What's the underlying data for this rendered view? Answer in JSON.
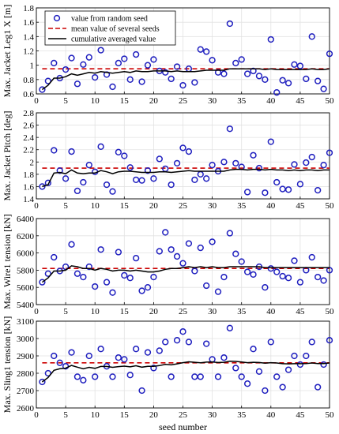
{
  "figure": {
    "xlabel": "seed number",
    "xlim": [
      0,
      50
    ],
    "xticks": [
      0,
      5,
      10,
      15,
      20,
      25,
      30,
      35,
      40,
      45,
      50
    ]
  },
  "legend": {
    "placement": "top-left of first panel",
    "entries": [
      {
        "label": "value from random seed",
        "style": "circle",
        "color": "#1f1fbf"
      },
      {
        "label": "mean value of several seeds",
        "style": "dashed",
        "color": "#cc0000"
      },
      {
        "label": "cumulative averaged value",
        "style": "solid",
        "color": "#000000"
      }
    ]
  },
  "colors": {
    "points": "#1f1fbf",
    "mean": "#cc0000",
    "cumulative": "#000000"
  },
  "chart_data": [
    {
      "type": "scatter",
      "ylabel": "Max. Jacket Leg1 X [m]",
      "ylim": [
        0.6,
        1.8
      ],
      "yticks": [
        "0.6",
        "0.8",
        "1",
        "1.2",
        "1.4",
        "1.6",
        "1.8"
      ],
      "grid": true,
      "mean": 0.95,
      "x": [
        1,
        2,
        3,
        4,
        5,
        6,
        7,
        8,
        9,
        10,
        11,
        12,
        13,
        14,
        15,
        16,
        17,
        18,
        19,
        20,
        21,
        22,
        23,
        24,
        25,
        26,
        27,
        28,
        29,
        30,
        31,
        32,
        33,
        34,
        35,
        36,
        37,
        38,
        39,
        40,
        41,
        42,
        43,
        44,
        45,
        46,
        47,
        48,
        49,
        50
      ],
      "series": [
        {
          "name": "value from random seed",
          "values": [
            0.66,
            0.78,
            1.03,
            0.82,
            0.94,
            1.1,
            0.74,
            1.01,
            1.11,
            0.83,
            1.21,
            0.87,
            0.7,
            1.03,
            1.09,
            0.8,
            1.15,
            0.77,
            1.0,
            1.08,
            0.92,
            0.9,
            0.81,
            0.98,
            0.72,
            0.95,
            0.76,
            1.22,
            1.19,
            1.07,
            0.9,
            0.88,
            1.58,
            1.03,
            1.08,
            0.88,
            0.92,
            0.85,
            0.8,
            1.36,
            0.62,
            0.79,
            0.75,
            1.01,
            0.99,
            0.81,
            1.4,
            0.78,
            0.67,
            1.16
          ]
        },
        {
          "name": "cumulative averaged value",
          "values": [
            0.66,
            0.72,
            0.82,
            0.82,
            0.84,
            0.88,
            0.86,
            0.88,
            0.9,
            0.89,
            0.91,
            0.9,
            0.89,
            0.9,
            0.91,
            0.9,
            0.92,
            0.91,
            0.91,
            0.92,
            0.92,
            0.92,
            0.91,
            0.92,
            0.91,
            0.91,
            0.91,
            0.92,
            0.93,
            0.93,
            0.93,
            0.93,
            0.95,
            0.95,
            0.95,
            0.95,
            0.95,
            0.95,
            0.94,
            0.95,
            0.94,
            0.94,
            0.94,
            0.94,
            0.94,
            0.94,
            0.95,
            0.94,
            0.94,
            0.95
          ]
        }
      ]
    },
    {
      "type": "scatter",
      "ylabel": "Max. Jacket Pitch [deg]",
      "ylim": [
        1.4,
        2.8
      ],
      "yticks": [
        "1.4",
        "1.6",
        "1.8",
        "2",
        "2.2",
        "2.4",
        "2.6",
        "2.8"
      ],
      "grid": true,
      "mean": 1.9,
      "x": [
        1,
        2,
        3,
        4,
        5,
        6,
        7,
        8,
        9,
        10,
        11,
        12,
        13,
        14,
        15,
        16,
        17,
        18,
        19,
        20,
        21,
        22,
        23,
        24,
        25,
        26,
        27,
        28,
        29,
        30,
        31,
        32,
        33,
        34,
        35,
        36,
        37,
        38,
        39,
        40,
        41,
        42,
        43,
        44,
        45,
        46,
        47,
        48,
        49,
        50
      ],
      "series": [
        {
          "name": "value from random seed",
          "values": [
            1.6,
            1.66,
            2.19,
            1.86,
            1.73,
            2.17,
            1.53,
            1.67,
            1.95,
            1.84,
            2.25,
            1.63,
            1.52,
            2.16,
            2.1,
            1.91,
            1.71,
            1.7,
            1.86,
            1.73,
            2.05,
            1.89,
            1.63,
            1.98,
            2.23,
            2.17,
            1.71,
            1.8,
            1.73,
            1.95,
            1.85,
            2.0,
            2.54,
            1.98,
            1.92,
            1.51,
            2.11,
            1.9,
            1.5,
            2.33,
            1.67,
            1.56,
            1.55,
            1.96,
            1.64,
            1.99,
            2.08,
            1.54,
            1.95,
            2.15
          ]
        },
        {
          "name": "cumulative averaged value",
          "values": [
            1.6,
            1.63,
            1.82,
            1.83,
            1.81,
            1.87,
            1.82,
            1.81,
            1.82,
            1.82,
            1.86,
            1.84,
            1.81,
            1.84,
            1.85,
            1.85,
            1.84,
            1.83,
            1.83,
            1.83,
            1.84,
            1.84,
            1.83,
            1.84,
            1.85,
            1.86,
            1.85,
            1.85,
            1.85,
            1.85,
            1.85,
            1.85,
            1.87,
            1.88,
            1.88,
            1.87,
            1.88,
            1.88,
            1.87,
            1.88,
            1.87,
            1.87,
            1.86,
            1.87,
            1.86,
            1.87,
            1.87,
            1.86,
            1.87,
            1.87
          ]
        }
      ]
    },
    {
      "type": "scatter",
      "ylabel": "Max. Wire1 tension [kN]",
      "ylim": [
        5400,
        6400
      ],
      "yticks": [
        "5400",
        "5600",
        "5800",
        "6000",
        "6200",
        "6400"
      ],
      "grid": true,
      "mean": 5820,
      "x": [
        1,
        2,
        3,
        4,
        5,
        6,
        7,
        8,
        9,
        10,
        11,
        12,
        13,
        14,
        15,
        16,
        17,
        18,
        19,
        20,
        21,
        22,
        23,
        24,
        25,
        26,
        27,
        28,
        29,
        30,
        31,
        32,
        33,
        34,
        35,
        36,
        37,
        38,
        39,
        40,
        41,
        42,
        43,
        44,
        45,
        46,
        47,
        48,
        49,
        50
      ],
      "series": [
        {
          "name": "value from random seed",
          "values": [
            5660,
            5760,
            5950,
            5790,
            5840,
            6100,
            5760,
            5720,
            5840,
            5610,
            6040,
            5660,
            5540,
            6010,
            5740,
            5710,
            5940,
            5560,
            5600,
            5720,
            6020,
            6240,
            6040,
            5960,
            5880,
            6110,
            5790,
            6060,
            5620,
            6130,
            5550,
            5720,
            6230,
            5990,
            5900,
            5780,
            5750,
            5840,
            5600,
            5820,
            5780,
            5730,
            5710,
            5910,
            5660,
            5800,
            5950,
            5720,
            5680,
            5800
          ]
        },
        {
          "name": "cumulative averaged value",
          "values": [
            5660,
            5710,
            5790,
            5790,
            5800,
            5850,
            5840,
            5820,
            5820,
            5800,
            5820,
            5810,
            5790,
            5800,
            5800,
            5790,
            5800,
            5790,
            5780,
            5780,
            5790,
            5810,
            5820,
            5820,
            5830,
            5840,
            5830,
            5840,
            5830,
            5840,
            5830,
            5830,
            5840,
            5840,
            5840,
            5840,
            5840,
            5840,
            5830,
            5830,
            5830,
            5830,
            5830,
            5830,
            5830,
            5830,
            5830,
            5830,
            5830,
            5830
          ]
        }
      ]
    },
    {
      "type": "scatter",
      "ylabel": "Max. Sling1 tension [kN]",
      "ylim": [
        2600,
        3100
      ],
      "yticks": [
        "2600",
        "2700",
        "2800",
        "2900",
        "3000",
        "3100"
      ],
      "grid": true,
      "mean": 2860,
      "x": [
        1,
        2,
        3,
        4,
        5,
        6,
        7,
        8,
        9,
        10,
        11,
        12,
        13,
        14,
        15,
        16,
        17,
        18,
        19,
        20,
        21,
        22,
        23,
        24,
        25,
        26,
        27,
        28,
        29,
        30,
        31,
        32,
        33,
        34,
        35,
        36,
        37,
        38,
        39,
        40,
        41,
        42,
        43,
        44,
        45,
        46,
        47,
        48,
        49,
        50
      ],
      "series": [
        {
          "name": "value from random seed",
          "values": [
            2750,
            2800,
            2900,
            2860,
            2840,
            2920,
            2780,
            2760,
            2900,
            2780,
            2940,
            2840,
            2780,
            2890,
            2880,
            2790,
            2940,
            2700,
            2920,
            2830,
            2930,
            2980,
            2780,
            2990,
            3040,
            2980,
            2780,
            2780,
            2970,
            2880,
            2780,
            2890,
            3060,
            2830,
            2780,
            2740,
            2940,
            2810,
            2700,
            2980,
            2780,
            2720,
            2820,
            2900,
            2850,
            2900,
            2980,
            2720,
            2850,
            2990
          ]
        },
        {
          "name": "cumulative averaged value",
          "values": [
            2750,
            2775,
            2817,
            2826,
            2829,
            2845,
            2835,
            2826,
            2834,
            2828,
            2839,
            2839,
            2834,
            2838,
            2841,
            2837,
            2843,
            2835,
            2840,
            2840,
            2844,
            2851,
            2848,
            2854,
            2861,
            2866,
            2863,
            2860,
            2864,
            2865,
            2862,
            2863,
            2869,
            2868,
            2865,
            2861,
            2863,
            2862,
            2858,
            2861,
            2859,
            2855,
            2854,
            2855,
            2855,
            2856,
            2859,
            2856,
            2856,
            2859
          ]
        }
      ]
    }
  ]
}
